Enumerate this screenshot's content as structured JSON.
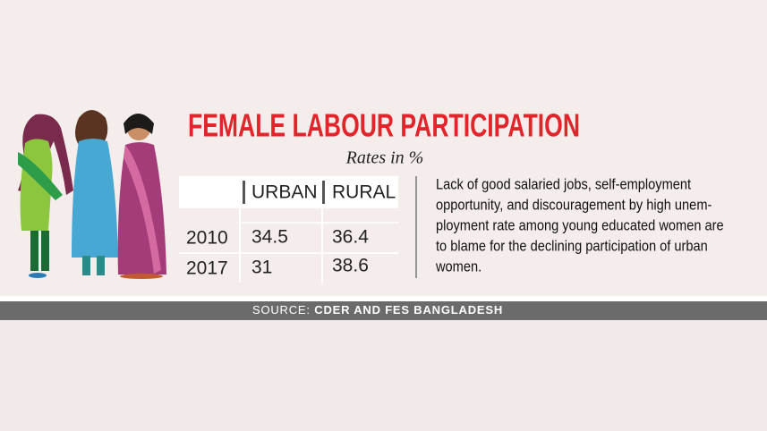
{
  "header": {
    "title": "FEMALE LABOUR PARTICIPATION",
    "subtitle": "Rates in %"
  },
  "table": {
    "columns": [
      "URBAN",
      "RURAL"
    ],
    "rows": [
      [
        "2010",
        "34.5",
        "36.4"
      ],
      [
        "2017",
        "31",
        "38.6"
      ]
    ]
  },
  "note": {
    "lines": [
      "Lack of good salaried jobs, self-employment",
      "opportunity, and discouragement by high unem-",
      "ployment rate among young educated women are",
      "to blame for the declining participation of urban",
      "women."
    ]
  },
  "source": {
    "label": "SOURCE:",
    "text": "CDER AND FES BANGLADESH"
  }
}
